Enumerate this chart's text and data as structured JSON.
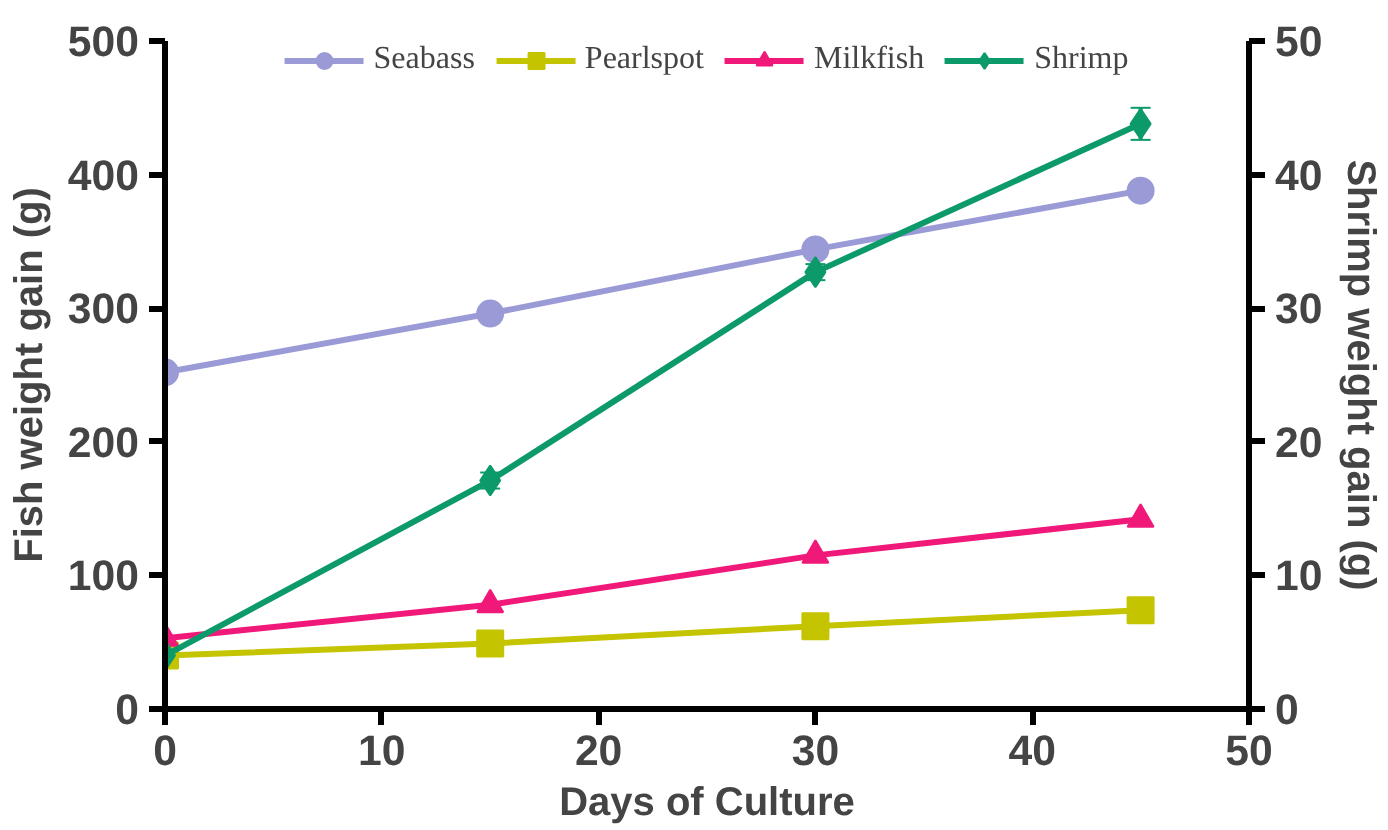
{
  "chart_data": {
    "type": "line",
    "xlabel": "Days of Culture",
    "ylabel": "Fish weight gain (g)",
    "y2label": "Shrimp weight gain (g)",
    "x": [
      0,
      15,
      30,
      45
    ],
    "series": [
      {
        "name": "Seabass",
        "color": "#9a9ad6",
        "values": [
          252,
          296,
          344,
          388
        ],
        "marker": "circle"
      },
      {
        "name": "Pearlspot",
        "color": "#c4c400",
        "values": [
          40,
          49,
          62,
          74
        ],
        "marker": "square"
      },
      {
        "name": "Milkfish",
        "color": "#f0197a",
        "values": [
          53,
          78,
          115,
          142
        ],
        "marker": "triangle"
      },
      {
        "name": "Shrimp",
        "color": "#0d9a6a",
        "values": [
          4.0,
          17.1,
          32.7,
          43.8
        ],
        "marker": "diamond",
        "axis": "y2",
        "errors": [
          null,
          0.6,
          0.6,
          1.2
        ]
      }
    ],
    "xlim": [
      0,
      50
    ],
    "xticks": [
      0,
      10,
      20,
      30,
      40,
      50
    ],
    "ylim": [
      0,
      500
    ],
    "yticks": [
      0,
      100,
      200,
      300,
      400,
      500
    ],
    "y2lim": [
      0,
      50
    ],
    "y2ticks": [
      0,
      10,
      20,
      30,
      40,
      50
    ],
    "grid": false,
    "legend": "top",
    "line_style": "solid"
  }
}
